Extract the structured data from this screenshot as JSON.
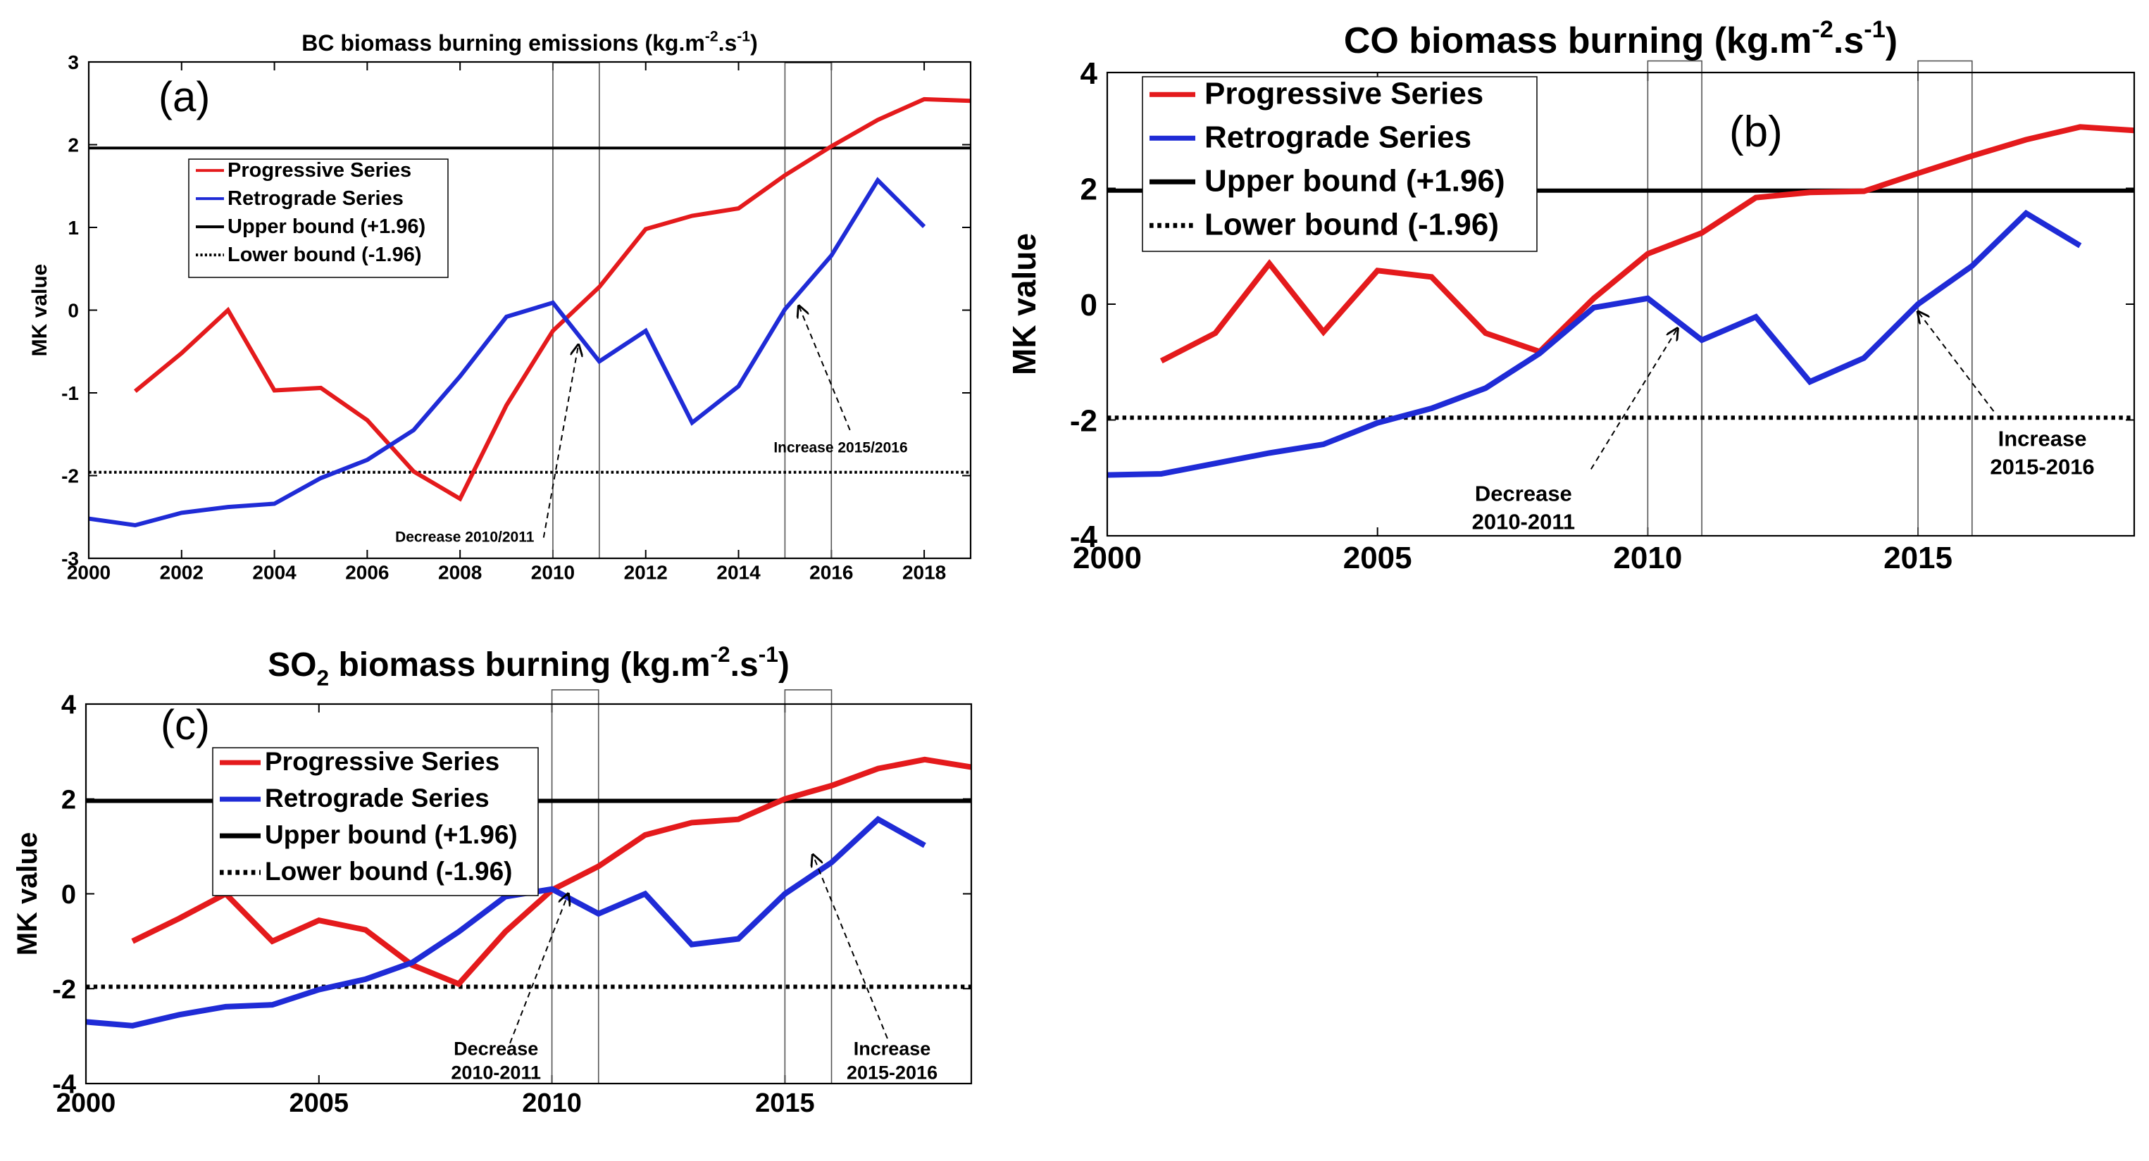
{
  "figure": {
    "xlabel": "",
    "ylabel": "MK value"
  },
  "chart_data": [
    {
      "id": "a",
      "type": "line",
      "panel_label": "(a)",
      "title": "BC biomass burning emissions (kg.m",
      "title_sup1": "-2",
      "title_mid": ".s",
      "title_sup2": "-1",
      "title_end": ")",
      "ylabel": "MK value",
      "xlim": [
        2000,
        2019
      ],
      "ylim": [
        -3,
        3
      ],
      "xticks": [
        2000,
        2002,
        2004,
        2006,
        2008,
        2010,
        2012,
        2014,
        2016,
        2018
      ],
      "yticks": [
        -3,
        -2,
        -1,
        0,
        1,
        2,
        3
      ],
      "xtick_labels": [
        "2000",
        "2002",
        "2004",
        "2006",
        "2008",
        "2010",
        "2012",
        "2014",
        "2016",
        "2018"
      ],
      "ytick_labels": [
        "-3",
        "-2",
        "-1",
        "0",
        "1",
        "2",
        "3"
      ],
      "series": [
        {
          "name": "Progressive Series",
          "color": "#e41a1c",
          "x": [
            2001,
            2002,
            2003,
            2004,
            2005,
            2006,
            2007,
            2008,
            2009,
            2010,
            2011,
            2012,
            2013,
            2014,
            2015,
            2016,
            2017,
            2018,
            2019
          ],
          "values": [
            -0.98,
            -0.52,
            0.0,
            -0.97,
            -0.94,
            -1.33,
            -1.95,
            -2.28,
            -1.15,
            -0.25,
            0.28,
            0.98,
            1.14,
            1.23,
            1.63,
            1.98,
            2.3,
            2.55,
            2.53
          ]
        },
        {
          "name": "Retrograde Series",
          "color": "#1f2bd6",
          "x": [
            2000,
            2001,
            2002,
            2003,
            2004,
            2005,
            2006,
            2007,
            2008,
            2009,
            2010,
            2011,
            2012,
            2013,
            2014,
            2015,
            2016,
            2017,
            2018
          ],
          "values": [
            -2.52,
            -2.6,
            -2.45,
            -2.38,
            -2.34,
            -2.03,
            -1.81,
            -1.45,
            -0.8,
            -0.08,
            0.09,
            -0.62,
            -0.25,
            -1.36,
            -0.92,
            0.01,
            0.66,
            1.57,
            1.01
          ]
        }
      ],
      "bounds": {
        "upper": 1.96,
        "lower": -1.96
      },
      "legend": [
        "Progressive Series",
        "Retrograde Series",
        "Upper bound (+1.96)",
        "Lower bound (-1.96)"
      ],
      "annotations": [
        {
          "text": "Decrease 2010/2011",
          "lines": [
            "Decrease 2010/2011"
          ]
        },
        {
          "text": "Increase 2015/2016",
          "lines": [
            "Increase 2015/2016"
          ]
        }
      ],
      "boxes": [
        [
          2010,
          2011
        ],
        [
          2015,
          2016
        ]
      ]
    },
    {
      "id": "b",
      "type": "line",
      "panel_label": "(b)",
      "title": "CO biomass burning (kg.m",
      "title_sup1": "-2",
      "title_mid": ".s",
      "title_sup2": "-1",
      "title_end": ")",
      "ylabel": "MK value",
      "xlim": [
        2000,
        2019
      ],
      "ylim": [
        -4,
        4
      ],
      "xticks": [
        2000,
        2005,
        2010,
        2015
      ],
      "yticks": [
        -4,
        -2,
        0,
        2,
        4
      ],
      "xtick_labels": [
        "2000",
        "2005",
        "2010",
        "2015"
      ],
      "ytick_labels": [
        "-4",
        "-2",
        "0",
        "2",
        "4"
      ],
      "series": [
        {
          "name": "Progressive Series",
          "color": "#e41a1c",
          "x": [
            2001,
            2002,
            2003,
            2004,
            2005,
            2006,
            2007,
            2008,
            2009,
            2010,
            2011,
            2012,
            2013,
            2014,
            2015,
            2016,
            2017,
            2018,
            2019
          ],
          "values": [
            -0.98,
            -0.5,
            0.7,
            -0.48,
            0.58,
            0.47,
            -0.5,
            -0.82,
            0.1,
            0.87,
            1.23,
            1.84,
            1.93,
            1.95,
            2.26,
            2.56,
            2.84,
            3.06,
            3.0
          ]
        },
        {
          "name": "Retrograde Series",
          "color": "#1f2bd6",
          "x": [
            2000,
            2001,
            2002,
            2003,
            2004,
            2005,
            2006,
            2007,
            2008,
            2009,
            2010,
            2011,
            2012,
            2013,
            2014,
            2015,
            2016,
            2017,
            2018
          ],
          "values": [
            -2.95,
            -2.93,
            -2.75,
            -2.57,
            -2.42,
            -2.05,
            -1.8,
            -1.45,
            -0.85,
            -0.06,
            0.1,
            -0.62,
            -0.22,
            -1.34,
            -0.93,
            0.0,
            0.66,
            1.57,
            1.01
          ]
        }
      ],
      "bounds": {
        "upper": 1.96,
        "lower": -1.96
      },
      "legend": [
        "Progressive Series",
        "Retrograde Series",
        "Upper bound (+1.96)",
        "Lower bound (-1.96)"
      ],
      "annotations": [
        {
          "text": "Decrease 2010-2011",
          "lines": [
            "Decrease",
            "2010-2011"
          ]
        },
        {
          "text": "Increase 2015-2016",
          "lines": [
            "Increase",
            "2015-2016"
          ]
        }
      ],
      "boxes": [
        [
          2010,
          2011
        ],
        [
          2015,
          2016
        ]
      ]
    },
    {
      "id": "c",
      "type": "line",
      "panel_label": "(c)",
      "title": "SO",
      "title_sub": "2",
      "title_rest": " biomass burning (kg.m",
      "title_sup1": "-2",
      "title_mid": ".s",
      "title_sup2": "-1",
      "title_end": ")",
      "ylabel": "MK value",
      "xlim": [
        2000,
        2019
      ],
      "ylim": [
        -4,
        4
      ],
      "xticks": [
        2000,
        2005,
        2010,
        2015
      ],
      "yticks": [
        -4,
        -2,
        0,
        2,
        4
      ],
      "xtick_labels": [
        "2000",
        "2005",
        "2010",
        "2015"
      ],
      "ytick_labels": [
        "-4",
        "-2",
        "0",
        "2",
        "4"
      ],
      "series": [
        {
          "name": "Progressive Series",
          "color": "#e41a1c",
          "x": [
            2001,
            2002,
            2003,
            2004,
            2005,
            2006,
            2007,
            2008,
            2009,
            2010,
            2011,
            2012,
            2013,
            2014,
            2015,
            2016,
            2017,
            2018,
            2019
          ],
          "values": [
            -1.0,
            -0.52,
            0.0,
            -1.0,
            -0.56,
            -0.76,
            -1.5,
            -1.9,
            -0.8,
            0.08,
            0.58,
            1.24,
            1.5,
            1.57,
            2.0,
            2.28,
            2.64,
            2.83,
            2.67
          ]
        },
        {
          "name": "Retrograde Series",
          "color": "#1f2bd6",
          "x": [
            2000,
            2001,
            2002,
            2003,
            2004,
            2005,
            2006,
            2007,
            2008,
            2009,
            2010,
            2011,
            2012,
            2013,
            2014,
            2015,
            2016,
            2017,
            2018
          ],
          "values": [
            -2.7,
            -2.78,
            -2.55,
            -2.38,
            -2.34,
            -2.02,
            -1.8,
            -1.45,
            -0.8,
            -0.06,
            0.1,
            -0.42,
            0.0,
            -1.07,
            -0.95,
            0.0,
            0.66,
            1.57,
            1.02
          ]
        }
      ],
      "bounds": {
        "upper": 1.96,
        "lower": -1.96
      },
      "legend": [
        "Progressive Series",
        "Retrograde Series",
        "Upper bound (+1.96)",
        "Lower bound (-1.96)"
      ],
      "annotations": [
        {
          "text": "Decrease 2010-2011",
          "lines": [
            "Decrease",
            "2010-2011"
          ]
        },
        {
          "text": "Increase 2015-2016",
          "lines": [
            "Increase",
            "2015-2016"
          ]
        }
      ],
      "boxes": [
        [
          2010,
          2011
        ],
        [
          2015,
          2016
        ]
      ]
    }
  ]
}
